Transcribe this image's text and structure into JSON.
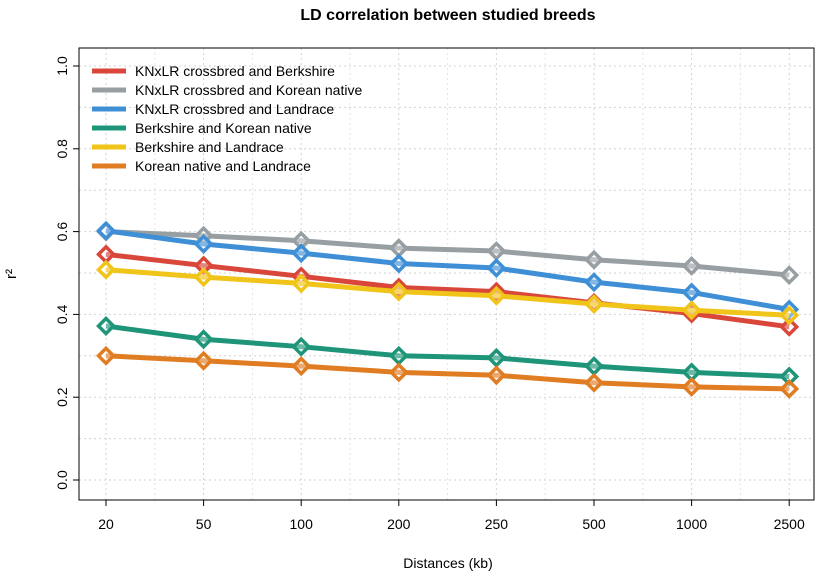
{
  "chart_data": {
    "type": "line",
    "title": "LD correlation between studied breeds",
    "xlabel": "Distances (kb)",
    "ylabel": "r²",
    "categories": [
      "20",
      "50",
      "100",
      "200",
      "250",
      "500",
      "1000",
      "2500"
    ],
    "ylim": [
      0.0,
      1.0
    ],
    "yticks": [
      "0.0",
      "0.2",
      "0.4",
      "0.6",
      "0.8",
      "1.0"
    ],
    "grid": true,
    "legend_position": "top-left",
    "marker": "diamond",
    "series": [
      {
        "name": "KNxLR crossbred and Berkshire",
        "color": "#d9473b",
        "values": [
          0.545,
          0.518,
          0.492,
          0.465,
          0.455,
          0.428,
          0.402,
          0.37
        ]
      },
      {
        "name": "KNxLR crossbred and Korean native",
        "color": "#979fa3",
        "values": [
          0.6,
          0.59,
          0.578,
          0.56,
          0.553,
          0.532,
          0.517,
          0.495
        ]
      },
      {
        "name": "KNxLR crossbred and Landrace",
        "color": "#3f8fd6",
        "values": [
          0.602,
          0.57,
          0.548,
          0.523,
          0.512,
          0.478,
          0.453,
          0.412
        ]
      },
      {
        "name": "Berkshire and Korean native",
        "color": "#1e9478",
        "values": [
          0.372,
          0.34,
          0.322,
          0.3,
          0.295,
          0.275,
          0.26,
          0.25
        ]
      },
      {
        "name": "Berkshire and Landrace",
        "color": "#f0c419",
        "values": [
          0.508,
          0.49,
          0.475,
          0.455,
          0.445,
          0.425,
          0.41,
          0.398
        ]
      },
      {
        "name": "Korean native and Landrace",
        "color": "#e07c22",
        "values": [
          0.3,
          0.288,
          0.275,
          0.26,
          0.253,
          0.235,
          0.225,
          0.22
        ]
      }
    ]
  }
}
